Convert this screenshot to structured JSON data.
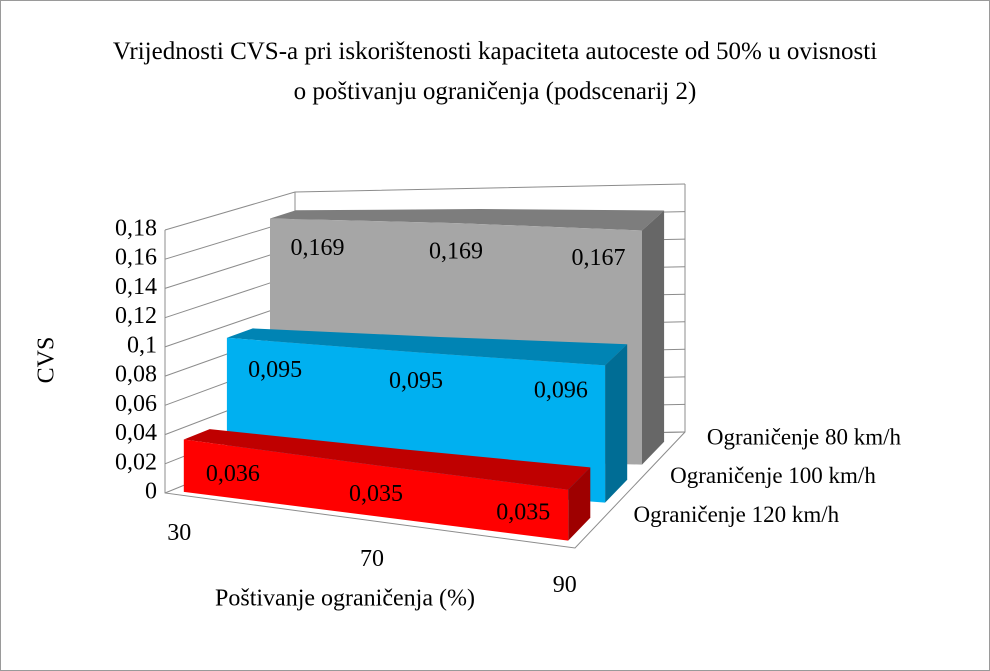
{
  "chart_data": {
    "type": "area3d",
    "title": "Vrijednosti CVS-a pri iskorištenosti kapaciteta autoceste od 50% u ovisnosti o poštivanju ograničenja (podscenarij 2)",
    "x_label": "Poštivanje ograničenja (%)",
    "y_label": "CVS",
    "categories": [
      "30",
      "70",
      "90"
    ],
    "series": [
      {
        "name": "Ograničenje 120 km/h",
        "color": "#ff0000",
        "values": [
          0.036,
          0.035,
          0.035
        ],
        "value_labels": [
          "0,036",
          "0,035",
          "0,035"
        ]
      },
      {
        "name": "Ograničenje 100 km/h",
        "color": "#00b0f0",
        "values": [
          0.095,
          0.095,
          0.096
        ],
        "value_labels": [
          "0,095",
          "0,095",
          "0,096"
        ]
      },
      {
        "name": "Ograničenje 80 km/h",
        "color": "#a6a6a6",
        "values": [
          0.169,
          0.169,
          0.167
        ],
        "value_labels": [
          "0,169",
          "0,169",
          "0,167"
        ]
      }
    ],
    "ylim": [
      0,
      0.18
    ],
    "yticks": [
      0,
      {
        "value": 0.02,
        "label": "0,02"
      },
      {
        "value": 0.04,
        "label": "0,04"
      },
      {
        "value": 0.06,
        "label": "0,06"
      },
      {
        "value": 0.08,
        "label": "0,08"
      },
      {
        "value": 0.1,
        "label": "0,1"
      },
      {
        "value": 0.12,
        "label": "0,12"
      },
      {
        "value": 0.14,
        "label": "0,14"
      },
      {
        "value": 0.16,
        "label": "0,16"
      },
      {
        "value": 0.18,
        "label": "0,18"
      }
    ],
    "grid": true
  }
}
